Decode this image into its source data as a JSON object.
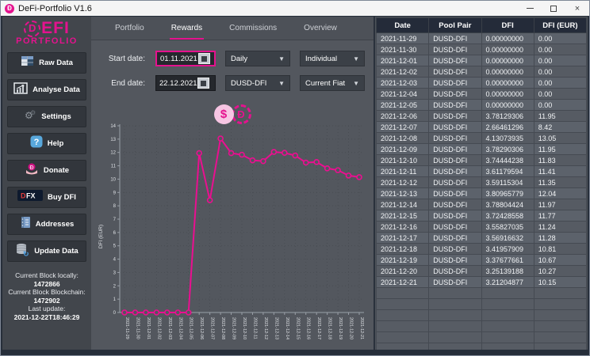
{
  "window": {
    "title": "DeFi-Portfolio V1.6",
    "controls": {
      "minimize": "minimize",
      "maximize": "maximize",
      "close": "close"
    }
  },
  "sidebar": {
    "logo": {
      "mark": "dfi-logo-icon",
      "mark_letter": "D",
      "text": "EFI",
      "subtext": "PORTFOLIO"
    },
    "buttons": [
      {
        "label": "Raw Data",
        "icon": "table-icon"
      },
      {
        "label": "Analyse Data",
        "icon": "bar-chart-icon"
      },
      {
        "label": "Settings",
        "icon": "gears-icon"
      },
      {
        "label": "Help",
        "icon": "question-icon"
      },
      {
        "label": "Donate",
        "icon": "donate-hands-icon"
      },
      {
        "label": "Buy DFI",
        "icon": "dfx-logo-icon"
      },
      {
        "label": "Addresses",
        "icon": "address-book-icon"
      },
      {
        "label": "Update Data",
        "icon": "database-refresh-icon"
      }
    ],
    "status": [
      {
        "label": "Current Block locally:",
        "value": "1472866"
      },
      {
        "label": "Current Block Blockchain:",
        "value": "1472902"
      },
      {
        "label": "Last update:",
        "value": "2021-12-22T18:46:29"
      }
    ]
  },
  "main": {
    "tabs": [
      {
        "label": "Portfolio",
        "active": false
      },
      {
        "label": "Rewards",
        "active": true
      },
      {
        "label": "Commissions",
        "active": false
      },
      {
        "label": "Overview",
        "active": false
      }
    ],
    "form": {
      "start_date_label": "Start date:",
      "start_date_value": "01.11.2021",
      "end_date_label": "End date:",
      "end_date_value": "22.12.2021",
      "interval_selected": "Daily",
      "pool_selected": "DUSD-DFI",
      "mode_selected": "Individual",
      "fiat_selected": "Current Fiat"
    },
    "toggles": {
      "fiat_icon": "fiat-coin-icon",
      "fiat_symbol": "$",
      "dfi_icon": "dfi-coin-icon",
      "dfi_symbol": "Ð"
    }
  },
  "chart_data": {
    "type": "line",
    "title": "",
    "xlabel": "",
    "ylabel": "DFI (EUR)",
    "ylim": [
      0,
      14
    ],
    "grid": true,
    "line_color": "#ea0f90",
    "x": [
      "2021-11-29",
      "2021-11-30",
      "2021-12-01",
      "2021-12-02",
      "2021-12-03",
      "2021-12-04",
      "2021-12-05",
      "2021-12-06",
      "2021-12-07",
      "2021-12-08",
      "2021-12-09",
      "2021-12-10",
      "2021-12-11",
      "2021-12-12",
      "2021-12-13",
      "2021-12-14",
      "2021-12-15",
      "2021-12-16",
      "2021-12-17",
      "2021-12-18",
      "2021-12-19",
      "2021-12-20",
      "2021-12-21"
    ],
    "values": [
      0,
      0,
      0,
      0,
      0,
      0,
      0,
      11.95,
      8.42,
      13.05,
      11.95,
      11.83,
      11.41,
      11.35,
      12.04,
      11.97,
      11.77,
      11.24,
      11.28,
      10.81,
      10.67,
      10.27,
      10.15
    ]
  },
  "table": {
    "columns": [
      "Date",
      "Pool Pair",
      "DFI",
      "DFI (EUR)"
    ],
    "rows": [
      [
        "2021-11-29",
        "DUSD-DFI",
        "0.00000000",
        "0.00"
      ],
      [
        "2021-11-30",
        "DUSD-DFI",
        "0.00000000",
        "0.00"
      ],
      [
        "2021-12-01",
        "DUSD-DFI",
        "0.00000000",
        "0.00"
      ],
      [
        "2021-12-02",
        "DUSD-DFI",
        "0.00000000",
        "0.00"
      ],
      [
        "2021-12-03",
        "DUSD-DFI",
        "0.00000000",
        "0.00"
      ],
      [
        "2021-12-04",
        "DUSD-DFI",
        "0.00000000",
        "0.00"
      ],
      [
        "2021-12-05",
        "DUSD-DFI",
        "0.00000000",
        "0.00"
      ],
      [
        "2021-12-06",
        "DUSD-DFI",
        "3.78129306",
        "11.95"
      ],
      [
        "2021-12-07",
        "DUSD-DFI",
        "2.66461296",
        "8.42"
      ],
      [
        "2021-12-08",
        "DUSD-DFI",
        "4.13073935",
        "13.05"
      ],
      [
        "2021-12-09",
        "DUSD-DFI",
        "3.78290306",
        "11.95"
      ],
      [
        "2021-12-10",
        "DUSD-DFI",
        "3.74444238",
        "11.83"
      ],
      [
        "2021-12-11",
        "DUSD-DFI",
        "3.61179594",
        "11.41"
      ],
      [
        "2021-12-12",
        "DUSD-DFI",
        "3.59115304",
        "11.35"
      ],
      [
        "2021-12-13",
        "DUSD-DFI",
        "3.80965779",
        "12.04"
      ],
      [
        "2021-12-14",
        "DUSD-DFI",
        "3.78804424",
        "11.97"
      ],
      [
        "2021-12-15",
        "DUSD-DFI",
        "3.72428558",
        "11.77"
      ],
      [
        "2021-12-16",
        "DUSD-DFI",
        "3.55827035",
        "11.24"
      ],
      [
        "2021-12-17",
        "DUSD-DFI",
        "3.56916632",
        "11.28"
      ],
      [
        "2021-12-18",
        "DUSD-DFI",
        "3.41957909",
        "10.81"
      ],
      [
        "2021-12-19",
        "DUSD-DFI",
        "3.37677661",
        "10.67"
      ],
      [
        "2021-12-20",
        "DUSD-DFI",
        "3.25139188",
        "10.27"
      ],
      [
        "2021-12-21",
        "DUSD-DFI",
        "3.21204877",
        "10.15"
      ]
    ],
    "empty_rows": 6
  },
  "colors": {
    "accent": "#e5128e",
    "sidebar_bg": "#42464c",
    "main_bg": "#53575e",
    "table_header_bg": "#242b39",
    "button_bg": "#32363c"
  }
}
